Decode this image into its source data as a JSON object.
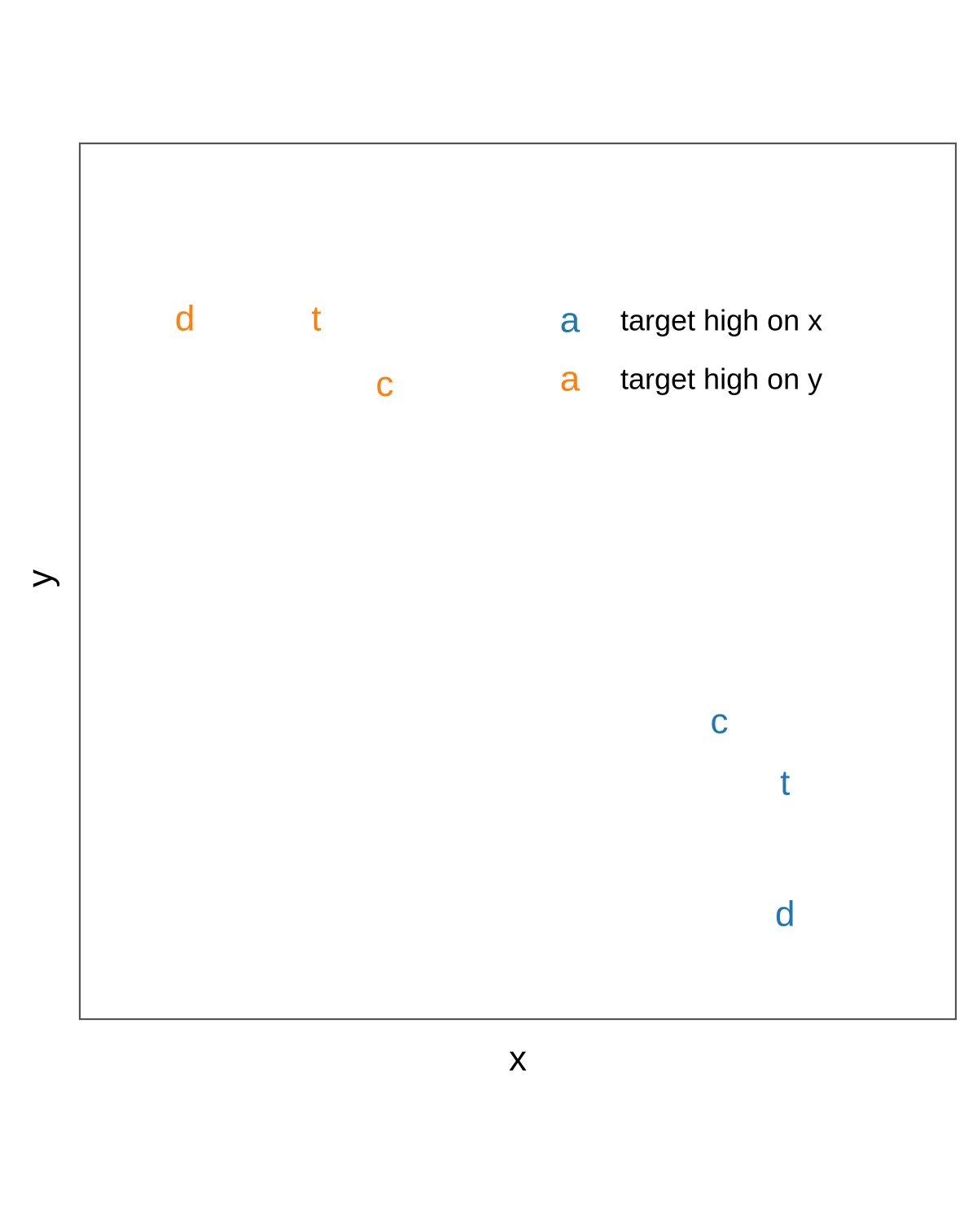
{
  "chart_data": {
    "type": "scatter",
    "title": "",
    "xlabel": "x",
    "ylabel": "y",
    "xlim": [
      0,
      1
    ],
    "ylim": [
      0,
      1
    ],
    "grid": false,
    "axis_ticks": false,
    "legend_position": "top-right",
    "legend_key_glyph": "a",
    "series": [
      {
        "name": "target high on x",
        "color": "#1f77b4",
        "points": [
          {
            "label": "c",
            "x": 0.73,
            "y": 0.34
          },
          {
            "label": "t",
            "x": 0.805,
            "y": 0.27
          },
          {
            "label": "d",
            "x": 0.805,
            "y": 0.12
          }
        ]
      },
      {
        "name": "target high on y",
        "color": "#ff7f0e",
        "points": [
          {
            "label": "d",
            "x": 0.12,
            "y": 0.8
          },
          {
            "label": "t",
            "x": 0.27,
            "y": 0.8
          },
          {
            "label": "c",
            "x": 0.348,
            "y": 0.725
          }
        ]
      }
    ]
  }
}
